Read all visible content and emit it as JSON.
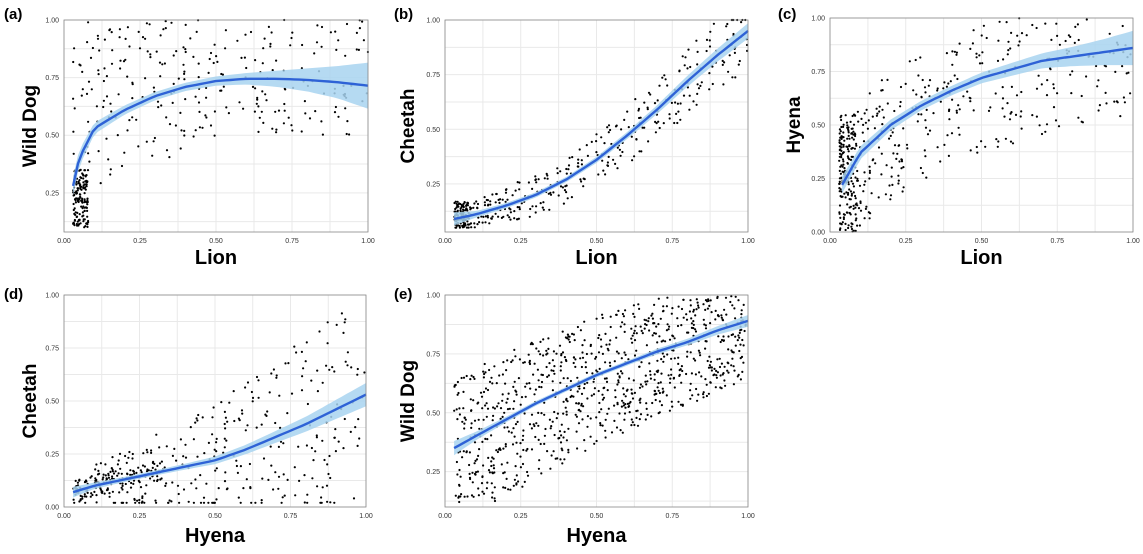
{
  "chart_data": [
    {
      "type": "scatter",
      "panel_label": "(a)",
      "xlabel": "Lion",
      "ylabel": "Wild Dog",
      "xlim": [
        0,
        1
      ],
      "ylim": [
        0.08,
        1.0
      ],
      "xticks": [
        "0.00",
        "0.25",
        "0.50",
        "0.75",
        "1.00"
      ],
      "yticks": [
        "0.25",
        "0.50",
        "0.75",
        "1.00"
      ],
      "ytick_values": [
        0.25,
        0.5,
        0.75,
        1.0
      ],
      "n_points": 420,
      "smooth": {
        "x": [
          0.03,
          0.05,
          0.1,
          0.2,
          0.3,
          0.4,
          0.5,
          0.6,
          0.7,
          0.8,
          0.9,
          1.0
        ],
        "y": [
          0.28,
          0.4,
          0.53,
          0.61,
          0.67,
          0.71,
          0.735,
          0.745,
          0.745,
          0.74,
          0.73,
          0.715
        ],
        "se": [
          0.04,
          0.035,
          0.025,
          0.02,
          0.018,
          0.018,
          0.02,
          0.025,
          0.035,
          0.05,
          0.07,
          0.1
        ]
      }
    },
    {
      "type": "scatter",
      "panel_label": "(b)",
      "xlabel": "Lion",
      "ylabel": "Cheetah",
      "xlim": [
        0,
        1
      ],
      "ylim": [
        0.03,
        1.0
      ],
      "xticks": [
        "0.00",
        "0.25",
        "0.50",
        "0.75",
        "1.00"
      ],
      "yticks": [
        "0.25",
        "0.50",
        "0.75",
        "1.00"
      ],
      "ytick_values": [
        0.25,
        0.5,
        0.75,
        1.0
      ],
      "n_points": 430,
      "smooth": {
        "x": [
          0.03,
          0.1,
          0.2,
          0.3,
          0.4,
          0.5,
          0.6,
          0.7,
          0.8,
          0.9,
          1.0
        ],
        "y": [
          0.09,
          0.11,
          0.15,
          0.2,
          0.27,
          0.36,
          0.47,
          0.59,
          0.72,
          0.84,
          0.95
        ],
        "se": [
          0.03,
          0.015,
          0.012,
          0.012,
          0.012,
          0.014,
          0.016,
          0.02,
          0.025,
          0.03,
          0.035
        ]
      }
    },
    {
      "type": "scatter",
      "panel_label": "(c)",
      "xlabel": "Lion",
      "ylabel": "Hyena",
      "xlim": [
        0,
        1
      ],
      "ylim": [
        0.0,
        1.0
      ],
      "xticks": [
        "0.00",
        "0.25",
        "0.50",
        "0.75",
        "1.00"
      ],
      "yticks": [
        "0.00",
        "0.25",
        "0.50",
        "0.75",
        "1.00"
      ],
      "ytick_values": [
        0.0,
        0.25,
        0.5,
        0.75,
        1.0
      ],
      "n_points": 520,
      "smooth": {
        "x": [
          0.04,
          0.1,
          0.2,
          0.3,
          0.4,
          0.5,
          0.6,
          0.7,
          0.8,
          0.9,
          1.0
        ],
        "y": [
          0.22,
          0.37,
          0.5,
          0.59,
          0.66,
          0.72,
          0.76,
          0.8,
          0.82,
          0.84,
          0.86
        ],
        "se": [
          0.04,
          0.03,
          0.025,
          0.022,
          0.022,
          0.025,
          0.03,
          0.035,
          0.045,
          0.06,
          0.08
        ]
      }
    },
    {
      "type": "scatter",
      "panel_label": "(d)",
      "xlabel": "Hyena",
      "ylabel": "Cheetah",
      "xlim": [
        0,
        1
      ],
      "ylim": [
        0.0,
        1.0
      ],
      "xticks": [
        "0.00",
        "0.25",
        "0.50",
        "0.75",
        "1.00"
      ],
      "yticks": [
        "0.00",
        "0.25",
        "0.50",
        "0.75",
        "1.00"
      ],
      "ytick_values": [
        0.0,
        0.25,
        0.5,
        0.75,
        1.0
      ],
      "n_points": 440,
      "smooth": {
        "x": [
          0.03,
          0.1,
          0.2,
          0.3,
          0.4,
          0.5,
          0.6,
          0.7,
          0.8,
          0.9,
          1.0
        ],
        "y": [
          0.07,
          0.1,
          0.13,
          0.16,
          0.19,
          0.22,
          0.27,
          0.33,
          0.39,
          0.46,
          0.53
        ],
        "se": [
          0.025,
          0.015,
          0.012,
          0.012,
          0.014,
          0.018,
          0.022,
          0.028,
          0.035,
          0.045,
          0.055
        ]
      }
    },
    {
      "type": "scatter",
      "panel_label": "(e)",
      "xlabel": "Hyena",
      "ylabel": "Wild Dog",
      "xlim": [
        0,
        1
      ],
      "ylim": [
        0.1,
        1.0
      ],
      "xticks": [
        "0.00",
        "0.25",
        "0.50",
        "0.75",
        "1.00"
      ],
      "yticks": [
        "0.25",
        "0.50",
        "0.75",
        "1.00"
      ],
      "ytick_values": [
        0.25,
        0.5,
        0.75,
        1.0
      ],
      "n_points": 900,
      "smooth": {
        "x": [
          0.03,
          0.1,
          0.2,
          0.3,
          0.4,
          0.5,
          0.6,
          0.7,
          0.8,
          0.9,
          1.0
        ],
        "y": [
          0.35,
          0.4,
          0.47,
          0.54,
          0.6,
          0.66,
          0.71,
          0.76,
          0.8,
          0.85,
          0.89
        ],
        "se": [
          0.03,
          0.018,
          0.012,
          0.01,
          0.01,
          0.01,
          0.01,
          0.012,
          0.014,
          0.018,
          0.025
        ]
      }
    }
  ],
  "colors": {
    "trend": "#2e62d6",
    "band": "#a8d4f0",
    "point": "#000000"
  }
}
